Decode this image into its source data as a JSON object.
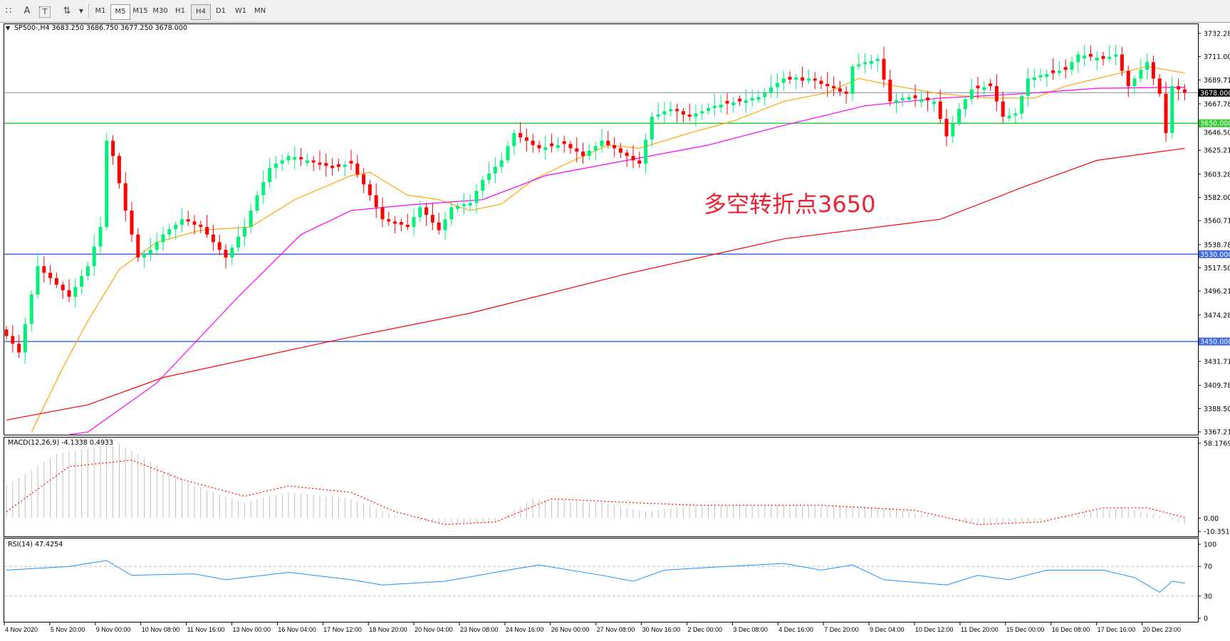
{
  "toolbar": {
    "icons": [
      "grid-icon",
      "text-icon",
      "text-label-icon",
      "arrows-icon"
    ],
    "timeframes": [
      "M1",
      "M5",
      "M15",
      "M30",
      "H1",
      "H4",
      "D1",
      "W1",
      "MN"
    ],
    "selected_timeframe": "H4"
  },
  "header": {
    "symbol_line": "SP500-,H4  3683.250 3686.750 3677.250 3678.000"
  },
  "indicators": {
    "macd_label": "MACD(12,26,9) -4.1338 0.4933",
    "rsi_label": "RSI(14) 47.4254"
  },
  "annotation": {
    "text": "多空转折点3650",
    "color": "#ee2233"
  },
  "colors": {
    "bull": "#00f07a",
    "bear": "#ff0000",
    "ma_fast": "#ffa500",
    "ma_mid": "#ff00ff",
    "ma_slow": "#ff0000",
    "level_green": "#32cd32",
    "level_blue": "#4169e1",
    "current_price": "#7a8a99",
    "macd_hist": "#c0c0c0",
    "macd_signal": "#ff0000",
    "rsi": "#1e90ff"
  },
  "chart_data": [
    {
      "type": "candlestick",
      "title": "SP500-,H4",
      "ylim": [
        3367.215,
        3732.285
      ],
      "y_tick_labels": [
        "3732.285",
        "3711.000",
        "3689.715",
        "3667.785",
        "3646.500",
        "3625.215",
        "3603.285",
        "3582.000",
        "3560.715",
        "3538.785",
        "3517.500",
        "3496.215",
        "3474.285",
        "3431.715",
        "3409.785",
        "3388.500",
        "3367.215"
      ],
      "x_tick_labels": [
        "4 Nov 2020",
        "5 Nov 20:00",
        "9 Nov 00:00",
        "10 Nov 08:00",
        "11 Nov 16:00",
        "13 Nov 00:00",
        "16 Nov 04:00",
        "17 Nov 12:00",
        "18 Nov 20:00",
        "20 Nov 04:00",
        "23 Nov 08:00",
        "24 Nov 16:00",
        "26 Nov 00:00",
        "27 Nov 08:00",
        "30 Nov 16:00",
        "2 Dec 00:00",
        "3 Dec 08:00",
        "4 Dec 16:00",
        "7 Dec 20:00",
        "9 Dec 04:00",
        "10 Dec 12:00",
        "11 Dec 20:00",
        "15 Dec 00:00",
        "16 Dec 08:00",
        "17 Dec 16:00",
        "20 Dec 23:00"
      ],
      "last_ohlc": {
        "open": 3683.25,
        "high": 3686.75,
        "low": 3677.25,
        "close": 3678.0
      },
      "close": [
        3455,
        3448,
        3440,
        3466,
        3493,
        3519,
        3513,
        3508,
        3502,
        3497,
        3491,
        3500,
        3510,
        3519,
        3537,
        3555,
        3634,
        3620,
        3595,
        3570,
        3548,
        3527,
        3530,
        3534,
        3541,
        3548,
        3553,
        3557,
        3562,
        3560,
        3557,
        3555,
        3548,
        3541,
        3534,
        3527,
        3536,
        3546,
        3555,
        3570,
        3584,
        3596,
        3609,
        3613,
        3616,
        3620,
        3619,
        3617,
        3616,
        3614,
        3612,
        3611,
        3609,
        3610,
        3612,
        3613,
        3603,
        3594,
        3584,
        3573,
        3562,
        3560,
        3558,
        3557,
        3555,
        3564,
        3573,
        3566,
        3559,
        3552,
        3562,
        3573,
        3574,
        3576,
        3577,
        3588,
        3598,
        3604,
        3610,
        3616,
        3629,
        3641,
        3637,
        3634,
        3630,
        3627,
        3628,
        3629,
        3630,
        3631,
        3627,
        3624,
        3620,
        3625,
        3629,
        3634,
        3630,
        3627,
        3623,
        3620,
        3616,
        3613,
        3635,
        3656,
        3658,
        3661,
        3663,
        3661,
        3658,
        3656,
        3659,
        3661,
        3664,
        3666,
        3667,
        3668,
        3669,
        3670,
        3671,
        3673,
        3674,
        3678,
        3683,
        3687,
        3691,
        3690,
        3692,
        3689,
        3691,
        3689,
        3686,
        3684,
        3682,
        3679,
        3677,
        3702,
        3704,
        3706,
        3707,
        3709,
        3690,
        3670,
        3671,
        3673,
        3674,
        3673,
        3672,
        3671,
        3670,
        3654,
        3638,
        3650,
        3663,
        3672,
        3681,
        3682,
        3683,
        3684,
        3670,
        3656,
        3657,
        3659,
        3675,
        3691,
        3692,
        3694,
        3695,
        3696,
        3698,
        3699,
        3706,
        3713,
        3712,
        3711,
        3710,
        3709,
        3711,
        3713,
        3698,
        3684,
        3691,
        3699,
        3706,
        3691,
        3677,
        3641,
        3684,
        3681,
        3678
      ],
      "moving_averages": [
        {
          "role": "fast",
          "points": [
            [
              4,
              3367
            ],
            [
              9,
              3426
            ],
            [
              13,
              3469
            ],
            [
              18,
              3516
            ],
            [
              24,
              3541
            ],
            [
              31,
              3552
            ],
            [
              39,
              3555
            ],
            [
              46,
              3580
            ],
            [
              55,
              3602
            ],
            [
              58,
              3605
            ],
            [
              64,
              3584
            ],
            [
              69,
              3580
            ],
            [
              74,
              3570
            ],
            [
              79,
              3576
            ],
            [
              84,
              3598
            ],
            [
              89,
              3612
            ],
            [
              96,
              3630
            ],
            [
              101,
              3627
            ],
            [
              109,
              3641
            ],
            [
              116,
              3652
            ],
            [
              124,
              3670
            ],
            [
              131,
              3678
            ],
            [
              136,
              3691
            ],
            [
              142,
              3684
            ],
            [
              149,
              3677
            ],
            [
              157,
              3673
            ],
            [
              164,
              3673
            ],
            [
              169,
              3684
            ],
            [
              177,
              3695
            ],
            [
              182,
              3702
            ],
            [
              188,
              3696
            ]
          ]
        },
        {
          "role": "mid",
          "points": [
            [
              10,
              3350
            ],
            [
              13,
              3367
            ],
            [
              24,
              3412
            ],
            [
              37,
              3491
            ],
            [
              47,
              3548
            ],
            [
              55,
              3570
            ],
            [
              64,
              3575
            ],
            [
              76,
              3580
            ],
            [
              86,
              3602
            ],
            [
              99,
              3616
            ],
            [
              112,
              3630
            ],
            [
              124,
              3648
            ],
            [
              137,
              3666
            ],
            [
              149,
              3673
            ],
            [
              162,
              3677
            ],
            [
              174,
              3682
            ],
            [
              188,
              3683
            ]
          ]
        },
        {
          "role": "slow",
          "points": [
            [
              0,
              3378
            ],
            [
              13,
              3392
            ],
            [
              25,
              3417
            ],
            [
              54,
              3453
            ],
            [
              74,
              3476
            ],
            [
              99,
              3512
            ],
            [
              124,
              3544
            ],
            [
              149,
              3562
            ],
            [
              162,
              3591
            ],
            [
              174,
              3616
            ],
            [
              188,
              3627
            ]
          ]
        }
      ],
      "levels": [
        {
          "value": 3678.0,
          "label": "3678.000",
          "role": "current_price"
        },
        {
          "value": 3650.0,
          "label": "3650.000",
          "role": "level_green"
        },
        {
          "value": 3530.0,
          "label": "3530.000",
          "role": "level_blue"
        },
        {
          "value": 3450.0,
          "label": "3450.000",
          "role": "level_blue"
        }
      ]
    },
    {
      "type": "bar",
      "title": "MACD(12,26,9)",
      "ylim": [
        -10.351,
        58.1769
      ],
      "y_tick_labels": [
        "58.1769",
        "0.00",
        "-10.351"
      ],
      "histogram_points": [
        [
          0,
          25
        ],
        [
          8,
          50
        ],
        [
          18,
          58
        ],
        [
          30,
          25
        ],
        [
          38,
          12
        ],
        [
          45,
          20
        ],
        [
          55,
          15
        ],
        [
          63,
          0
        ],
        [
          70,
          -5
        ],
        [
          78,
          -3
        ],
        [
          84,
          15
        ],
        [
          95,
          12
        ],
        [
          102,
          5
        ],
        [
          110,
          10
        ],
        [
          125,
          10
        ],
        [
          140,
          8
        ],
        [
          150,
          0
        ],
        [
          155,
          -5
        ],
        [
          165,
          -2
        ],
        [
          172,
          5
        ],
        [
          178,
          8
        ],
        [
          183,
          3
        ],
        [
          188,
          -4.13
        ]
      ],
      "signal_points": [
        [
          0,
          5
        ],
        [
          10,
          40
        ],
        [
          20,
          45
        ],
        [
          28,
          30
        ],
        [
          38,
          17
        ],
        [
          45,
          25
        ],
        [
          55,
          20
        ],
        [
          62,
          5
        ],
        [
          70,
          -5
        ],
        [
          78,
          -3
        ],
        [
          87,
          15
        ],
        [
          100,
          12
        ],
        [
          110,
          10
        ],
        [
          130,
          10
        ],
        [
          145,
          6
        ],
        [
          155,
          -5
        ],
        [
          165,
          -3
        ],
        [
          175,
          8
        ],
        [
          182,
          8
        ],
        [
          188,
          0.49
        ]
      ]
    },
    {
      "type": "line",
      "title": "RSI(14)",
      "ylim": [
        0,
        100
      ],
      "y_tick_labels": [
        "100",
        "70",
        "30",
        "0"
      ],
      "levels": [
        70,
        30
      ],
      "points": [
        [
          0,
          65
        ],
        [
          10,
          70
        ],
        [
          16,
          78
        ],
        [
          20,
          58
        ],
        [
          30,
          60
        ],
        [
          35,
          52
        ],
        [
          45,
          62
        ],
        [
          55,
          52
        ],
        [
          60,
          45
        ],
        [
          70,
          50
        ],
        [
          80,
          65
        ],
        [
          85,
          72
        ],
        [
          95,
          58
        ],
        [
          100,
          50
        ],
        [
          105,
          65
        ],
        [
          115,
          70
        ],
        [
          124,
          74
        ],
        [
          130,
          65
        ],
        [
          135,
          72
        ],
        [
          140,
          52
        ],
        [
          150,
          45
        ],
        [
          155,
          58
        ],
        [
          160,
          52
        ],
        [
          166,
          65
        ],
        [
          175,
          65
        ],
        [
          180,
          55
        ],
        [
          184,
          35
        ],
        [
          186,
          50
        ],
        [
          188,
          47.4
        ]
      ]
    }
  ]
}
